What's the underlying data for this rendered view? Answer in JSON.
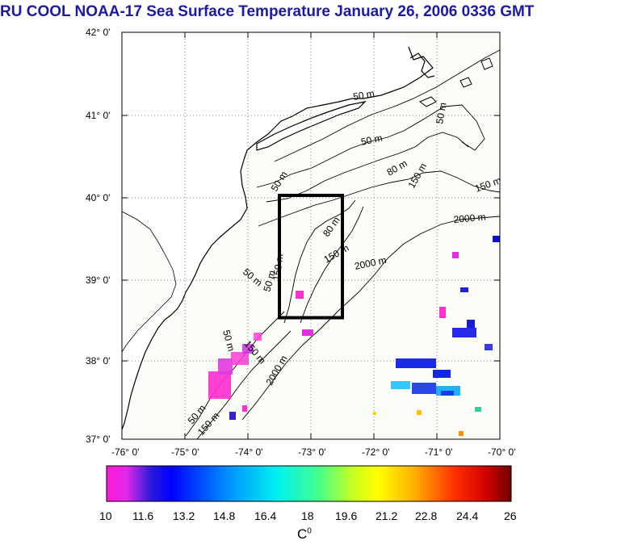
{
  "title": "RU COOL  NOAA-17 Sea Surface Temperature January 26, 2006 0336 GMT",
  "lat_labels": [
    "42° 0'",
    "41° 0'",
    "40° 0'",
    "39° 0'",
    "38° 0'",
    "37° 0'"
  ],
  "lon_labels": [
    "-76° 0'",
    "-75° 0'",
    "-74° 0'",
    "-73° 0'",
    "-72° 0'",
    "-71° 0'",
    "-70° 0'"
  ],
  "contour_labels": [
    {
      "text": "50 m"
    },
    {
      "text": "50 m"
    },
    {
      "text": "50 m"
    },
    {
      "text": "50 m"
    },
    {
      "text": "80 m"
    },
    {
      "text": "150 m"
    },
    {
      "text": "150 m"
    },
    {
      "text": "50 m"
    },
    {
      "text": "2000 m"
    },
    {
      "text": "80 m"
    },
    {
      "text": "150 m"
    },
    {
      "text": "2000 m"
    },
    {
      "text": "50 m"
    },
    {
      "text": "150 m"
    },
    {
      "text": "50 m"
    },
    {
      "text": "150 m"
    },
    {
      "text": "2000 m"
    },
    {
      "text": "50 m"
    },
    {
      "text": "150 m"
    }
  ],
  "colorbar": {
    "ticks": [
      "10",
      "11.6",
      "13.2",
      "14.8",
      "16.4",
      "18",
      "19.6",
      "21.2",
      "22.8",
      "24.4",
      "26"
    ],
    "unit": "C",
    "unit_sup": "0"
  },
  "colors": {
    "title": "#1a1aa6",
    "land": "#ffffff",
    "sea": "#fbfbf8",
    "box": "#000000"
  },
  "study_box": {
    "lon_min": -73.5,
    "lon_max": -72.5,
    "lat_min": 38.5,
    "lat_max": 40.0
  }
}
